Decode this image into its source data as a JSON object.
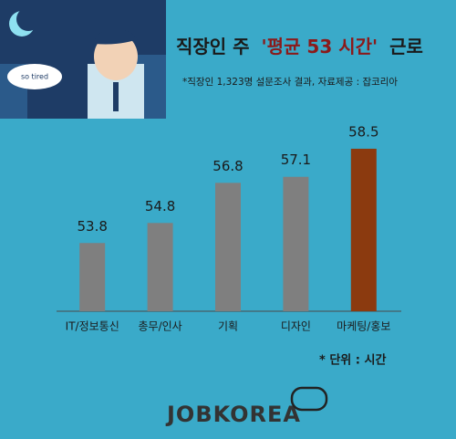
{
  "chart_data": {
    "type": "bar",
    "title_parts": [
      "직장인 주",
      "'평균 53 시간'",
      "근로"
    ],
    "subtitle": "*직장인 1,323명 설문조사 결과, 자료제공 : 잡코리아",
    "bubble_text": "so tired",
    "categories": [
      "IT/정보통신",
      "총무/인사",
      "기획",
      "디자인",
      "마케팅/홍보"
    ],
    "values": [
      53.8,
      54.8,
      56.8,
      57.1,
      58.5
    ],
    "colors": [
      "#7f7f7f",
      "#7f7f7f",
      "#7f7f7f",
      "#7f7f7f",
      "#8b3a0f"
    ],
    "ylim": [
      50.4,
      59.5
    ],
    "unit_note": "* 단위 : 시간",
    "logo": "JOBKOREA"
  }
}
